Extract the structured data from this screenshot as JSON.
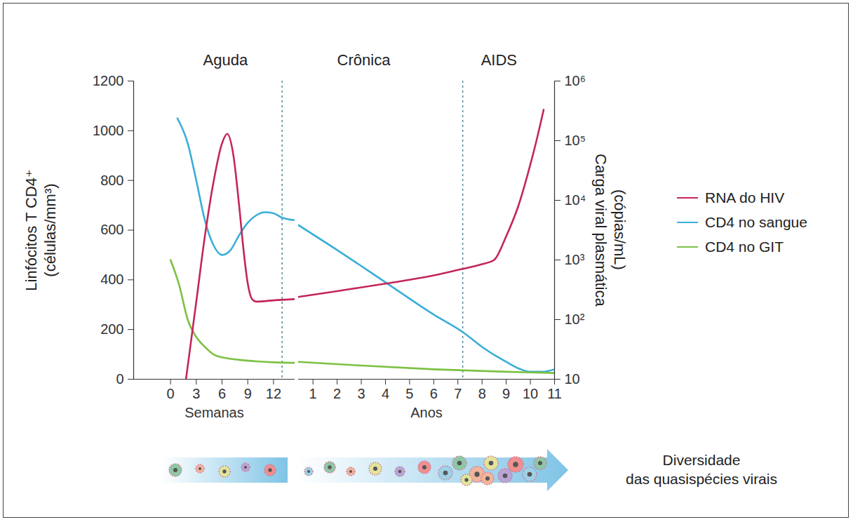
{
  "chart_data": [
    {
      "type": "line",
      "xlabel": "Semanas",
      "ylabel": "Linfócitos T CD4⁺ (células/mm³)",
      "xlim": [
        -4.3,
        14.5
      ],
      "xticks": [
        0,
        3,
        6,
        9,
        12
      ],
      "ylim": [
        0,
        1200
      ],
      "yticks": [
        0,
        200,
        400,
        600,
        800,
        1000,
        1200
      ],
      "y2lim": [
        10,
        1000000
      ],
      "log": "y2",
      "annotations": [
        {
          "text": "Aguda",
          "x": 6.4
        }
      ],
      "vlines": [
        13
      ],
      "series": [
        {
          "name": "RNA do HIV",
          "color": "#c4265a",
          "axis": "y2",
          "x": [
            1.8,
            3,
            4,
            5,
            6,
            6.6,
            7.3,
            8,
            8.5,
            9,
            9.5,
            10,
            12,
            14.5
          ],
          "values": [
            10,
            200,
            2500,
            20000,
            90000,
            130000,
            60000,
            8000,
            1500,
            400,
            220,
            200,
            210,
            220
          ]
        },
        {
          "name": "CD4 no sangue",
          "color": "#3aaed8",
          "x": [
            0.8,
            2,
            3,
            4,
            5,
            6,
            7,
            8,
            9,
            10,
            11,
            12,
            13,
            14.5
          ],
          "values": [
            1050,
            950,
            800,
            640,
            540,
            500,
            520,
            580,
            630,
            660,
            672,
            668,
            650,
            640
          ]
        },
        {
          "name": "CD4 no GIT",
          "color": "#7cc142",
          "x": [
            0,
            1,
            2,
            3,
            4,
            5,
            6,
            8,
            10,
            12,
            14.5
          ],
          "values": [
            480,
            380,
            240,
            170,
            130,
            100,
            88,
            78,
            72,
            68,
            66
          ]
        }
      ]
    },
    {
      "type": "line",
      "xlabel": "Anos",
      "y2label": "Carga viral plasmática (cópias/mL)",
      "xlim": [
        0.4,
        11
      ],
      "xticks": [
        1,
        2,
        3,
        4,
        5,
        6,
        7,
        8,
        9,
        10,
        11
      ],
      "ylim": [
        0,
        1200
      ],
      "y2lim": [
        10,
        1000000
      ],
      "y2ticks": [
        10,
        {
          "value": 100,
          "label": "10²"
        },
        {
          "value": 1000,
          "label": "10³"
        },
        {
          "value": 10000,
          "label": "10⁴"
        },
        {
          "value": 100000,
          "label": "10⁵"
        },
        {
          "value": 1000000,
          "label": "10⁶"
        }
      ],
      "log": "y2",
      "legend": "right",
      "annotations": [
        {
          "text": "Crônica",
          "x": 3.1
        },
        {
          "text": "AIDS",
          "x": 8.7
        }
      ],
      "vlines": [
        7.2
      ],
      "caption": "Diversidade das quasispécies virais",
      "series": [
        {
          "name": "RNA do HIV",
          "color": "#c4265a",
          "axis": "y2",
          "x": [
            0.4,
            2,
            4,
            6,
            7,
            8,
            8.5,
            9,
            9.5,
            10,
            10.3,
            10.55
          ],
          "values": [
            240,
            300,
            400,
            550,
            680,
            850,
            1000,
            2500,
            8000,
            40000,
            120000,
            330000
          ]
        },
        {
          "name": "CD4 no sangue",
          "color": "#3aaed8",
          "x": [
            0.4,
            2,
            4,
            6,
            7.2,
            8,
            9,
            9.6,
            10,
            10.5,
            11
          ],
          "values": [
            620,
            520,
            390,
            260,
            190,
            130,
            70,
            40,
            30,
            30,
            40
          ]
        },
        {
          "name": "CD4 no GIT",
          "color": "#7cc142",
          "x": [
            0.4,
            3,
            6,
            9,
            11
          ],
          "values": [
            70,
            55,
            40,
            30,
            25
          ]
        }
      ]
    }
  ]
}
